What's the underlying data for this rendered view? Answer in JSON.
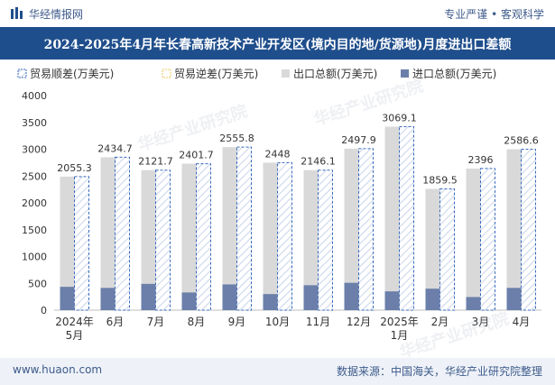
{
  "header": {
    "brand": "华经情报网",
    "slogan": "专业严谨 • 客观科学",
    "title": "2024-2025年4月年长春高新技术产业开发区(境内目的地/货源地)月度进出口差额"
  },
  "footer": {
    "website": "www.huaon.com",
    "source": "数据来源：中国海关，华经产业研究院整理"
  },
  "watermark": "华经产业研究院",
  "colors": {
    "title_bg": "#1f4e8c",
    "export_bar": "#d9d9d9",
    "import_bar": "#6b7faa",
    "surplus_border": "#3a6bbd",
    "deficit_border": "#e8c860",
    "axis_text": "#333333"
  },
  "chart_data": {
    "type": "bar",
    "categories": [
      "2024年5月",
      "6月",
      "7月",
      "8月",
      "9月",
      "10月",
      "11月",
      "12月",
      "2025年1月",
      "2月",
      "3月",
      "4月"
    ],
    "category_lines": [
      [
        "2024年",
        "5月"
      ],
      [
        "6月"
      ],
      [
        "7月"
      ],
      [
        "8月"
      ],
      [
        "9月"
      ],
      [
        "10月"
      ],
      [
        "11月"
      ],
      [
        "12月"
      ],
      [
        "2025年",
        "1月"
      ],
      [
        "2月"
      ],
      [
        "3月"
      ],
      [
        "4月"
      ]
    ],
    "series": [
      {
        "name": "贸易顺差(万美元)",
        "values": [
          2055.3,
          2434.7,
          2121.7,
          2401.7,
          2555.8,
          2448,
          2146.1,
          2497.9,
          3069.1,
          1859.5,
          2396,
          2586.6
        ]
      },
      {
        "name": "贸易逆差(万美元)",
        "values": [
          null,
          null,
          null,
          null,
          null,
          null,
          null,
          null,
          null,
          null,
          null,
          null
        ]
      },
      {
        "name": "出口总额(万美元)",
        "values": [
          2490,
          2850,
          2610,
          2730,
          3040,
          2750,
          2610,
          3010,
          3420,
          2260,
          2640,
          3000
        ]
      },
      {
        "name": "进口总额(万美元)",
        "values": [
          435,
          415,
          490,
          330,
          480,
          300,
          465,
          510,
          350,
          400,
          245,
          415
        ]
      }
    ],
    "data_labels": [
      "2055.3",
      "2434.7",
      "2121.7",
      "2401.7",
      "2555.8",
      "2448",
      "2146.1",
      "2497.9",
      "3069.1",
      "1859.5",
      "2396",
      "2586.6"
    ],
    "yticks": [
      "0",
      "500",
      "1000",
      "1500",
      "2000",
      "2500",
      "3000",
      "3500",
      "4000"
    ],
    "ylim": [
      0,
      4000
    ],
    "legend_position": "top",
    "grid": false
  }
}
